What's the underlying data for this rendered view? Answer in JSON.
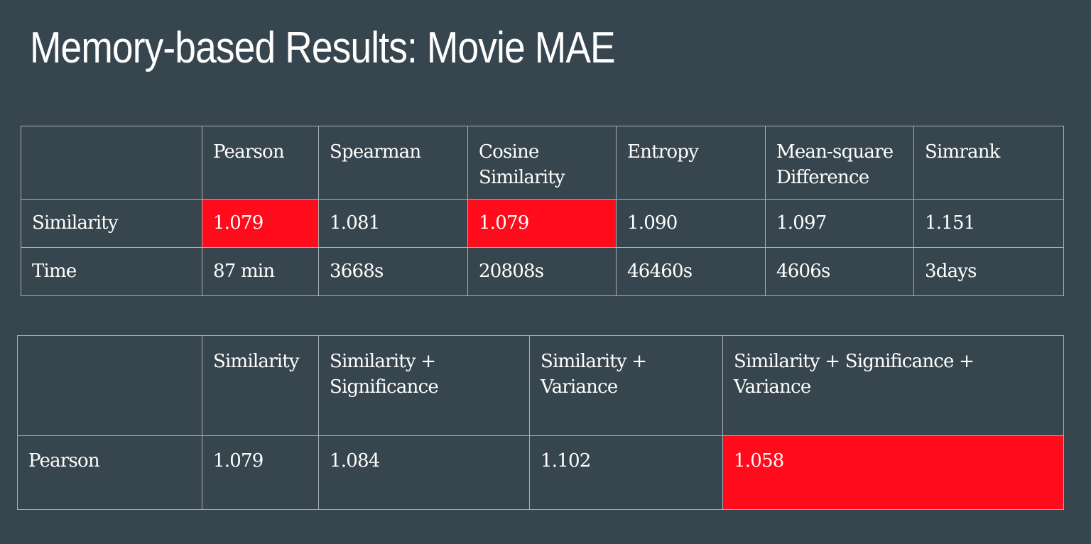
{
  "title": "Memory-based Results: Movie MAE",
  "colors": {
    "background": "#37464e",
    "highlight": "#ff0b1b",
    "grid": "#a9aeb1",
    "text": "#ffffff"
  },
  "table1": {
    "headers": [
      "",
      "Pearson",
      "Spearman",
      "Cosine Similarity",
      "Entropy",
      "Mean-square Difference",
      "Simrank"
    ],
    "rows": [
      {
        "label": "Similarity",
        "cells": [
          "1.079",
          "1.081",
          "1.079",
          "1.090",
          "1.097",
          "1.151"
        ]
      },
      {
        "label": "Time",
        "cells": [
          "87 min",
          "3668s",
          "20808s",
          "46460s",
          "4606s",
          "3days"
        ]
      }
    ],
    "highlighted": [
      "Similarity / Pearson",
      "Similarity / Cosine Similarity"
    ]
  },
  "table2": {
    "headers": [
      "",
      "Similarity",
      "Similarity + Significance",
      "Similarity + Variance",
      "Similarity + Significance + Variance"
    ],
    "rows": [
      {
        "label": "Pearson",
        "cells": [
          "1.079",
          "1.084",
          "1.102",
          "1.058"
        ]
      }
    ],
    "highlighted": [
      "Pearson / Similarity + Significance + Variance"
    ]
  }
}
